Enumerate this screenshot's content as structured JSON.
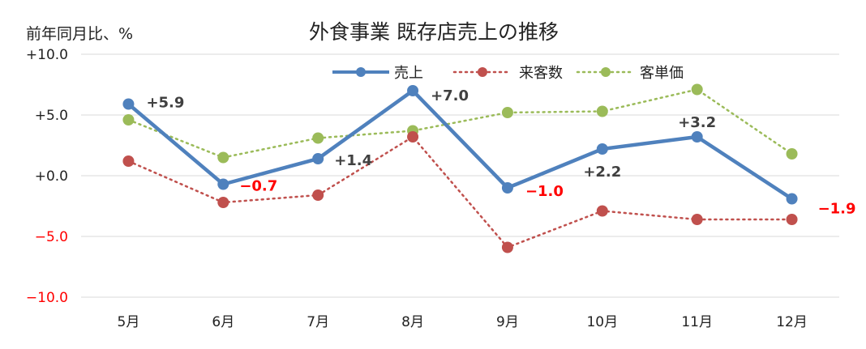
{
  "chart_data": {
    "type": "line",
    "title": "外食事業 既存店売上の推移",
    "ylabel": "前年同月比、%",
    "categories": [
      "5月",
      "6月",
      "7月",
      "8月",
      "9月",
      "10月",
      "11月",
      "12月"
    ],
    "ylim": [
      -10,
      10
    ],
    "yticks": [
      10,
      5,
      0,
      -5,
      -10
    ],
    "ytick_labels": [
      "+10.0",
      "+5.0",
      "+0.0",
      "−5.0",
      "−10.0"
    ],
    "grid": true,
    "legend_position": "top",
    "series": [
      {
        "name": "売上",
        "values": [
          5.9,
          -0.7,
          1.4,
          7.0,
          -1.0,
          2.2,
          3.2,
          -1.9
        ],
        "color": "#4f81bd",
        "style": "solid",
        "data_labels": [
          "+5.9",
          "−0.7",
          "+1.4",
          "+7.0",
          "−1.0",
          "+2.2",
          "+3.2",
          "−1.9"
        ]
      },
      {
        "name": "来客数",
        "values": [
          1.2,
          -2.2,
          -1.6,
          3.2,
          -5.9,
          -2.9,
          -3.6,
          -3.6
        ],
        "color": "#c0504d",
        "style": "dotted"
      },
      {
        "name": "客単価",
        "values": [
          4.6,
          1.5,
          3.1,
          3.7,
          5.2,
          5.3,
          7.1,
          1.8
        ],
        "color": "#9bbb59",
        "style": "dotted"
      }
    ],
    "colors": {
      "positive_label": "#404040",
      "negative_label": "#ff0000",
      "grid": "#d9d9d9"
    }
  }
}
